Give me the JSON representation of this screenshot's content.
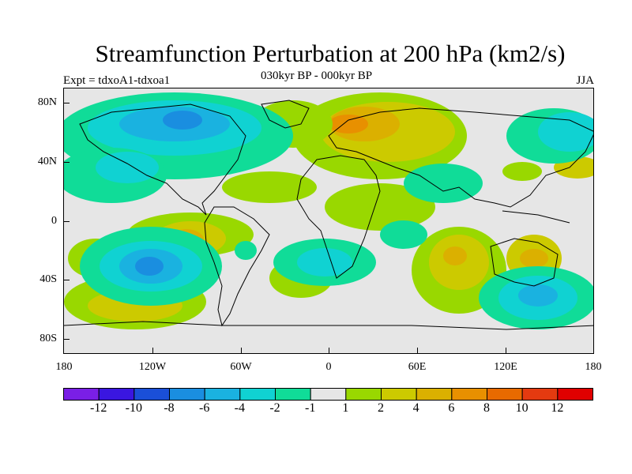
{
  "title": "Streamfunction Perturbation at 200 hPa (km2/s)",
  "subtitle": "030kyr BP - 000kyr BP",
  "experiment": "Expt = tdxoA1-tdxoa1",
  "season": "JJA",
  "latitude_labels": [
    "80N",
    "40N",
    "0",
    "40S",
    "80S"
  ],
  "longitude_labels": [
    "180",
    "120W",
    "60W",
    "0",
    "60E",
    "120E",
    "180"
  ],
  "colorbar": {
    "colors": [
      "#7a1fe6",
      "#3a16e0",
      "#1a4fd8",
      "#1a8ee0",
      "#1ab2e0",
      "#10d2d2",
      "#10dc98",
      "#e6e6e6",
      "#99d800",
      "#ccca00",
      "#dbb000",
      "#e89000",
      "#e86a00",
      "#e43a10",
      "#e00000"
    ],
    "labels": [
      "-12",
      "-10",
      "-8",
      "-6",
      "-4",
      "-2",
      "-1",
      "1",
      "2",
      "4",
      "6",
      "8",
      "10",
      "12"
    ]
  }
}
